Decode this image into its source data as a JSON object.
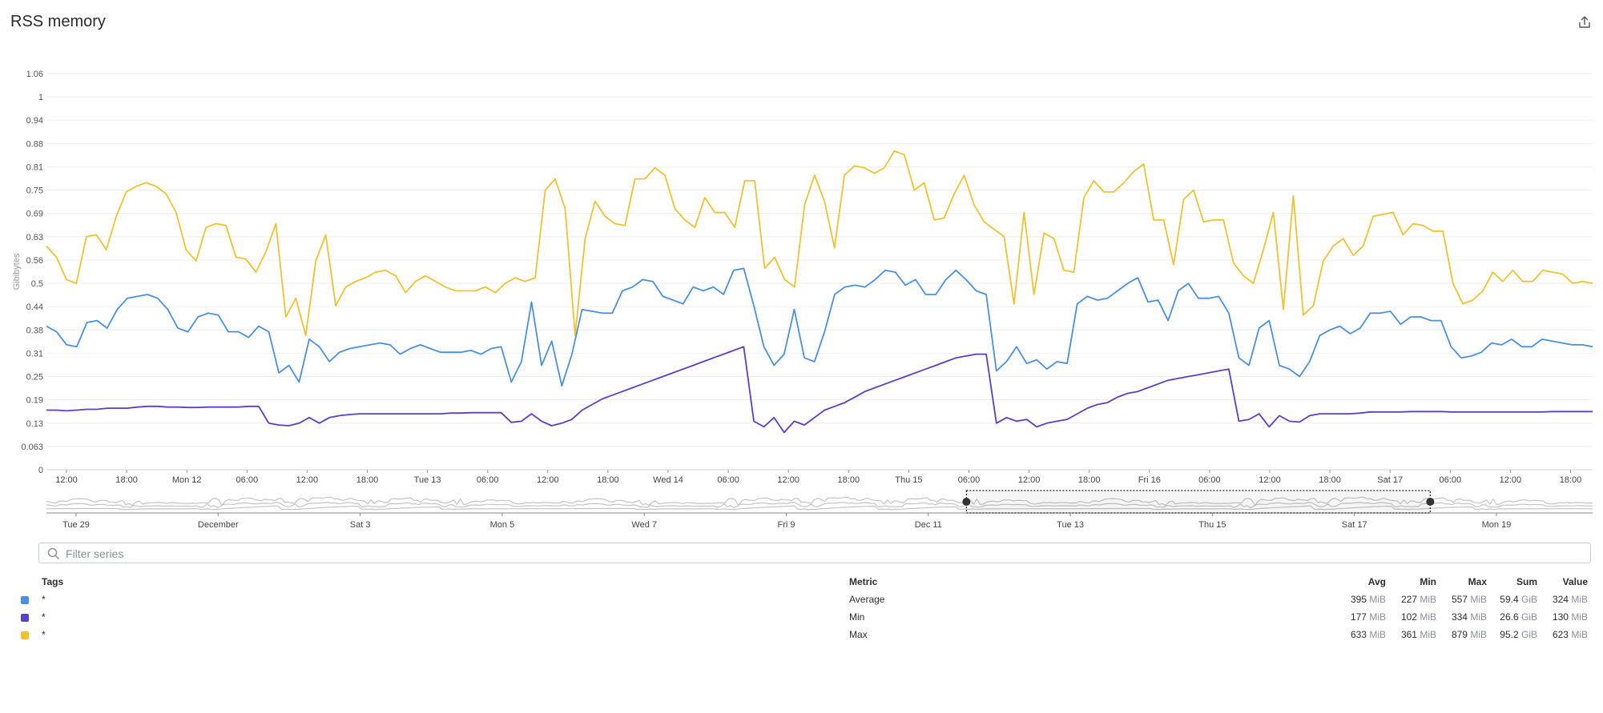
{
  "title": "RSS memory",
  "colors": {
    "avg": "#4a90e2",
    "min": "#5b3fc4",
    "max": "#f0c232"
  },
  "filter": {
    "placeholder": "Filter series"
  },
  "chart_data": {
    "type": "line",
    "ylabel": "Gibibytes",
    "yticks": [
      "0",
      "0.063",
      "0.13",
      "0.19",
      "0.25",
      "0.31",
      "0.38",
      "0.44",
      "0.5",
      "0.56",
      "0.63",
      "0.69",
      "0.75",
      "0.81",
      "0.88",
      "0.94",
      "1",
      "1.06"
    ],
    "xticks": [
      "12:00",
      "18:00",
      "Mon 12",
      "06:00",
      "12:00",
      "18:00",
      "Tue 13",
      "06:00",
      "12:00",
      "18:00",
      "Wed 14",
      "06:00",
      "12:00",
      "18:00",
      "Thu 15",
      "06:00",
      "12:00",
      "18:00",
      "Fri 16",
      "06:00",
      "12:00",
      "18:00",
      "Sat 17",
      "06:00",
      "12:00",
      "18:00"
    ],
    "series": [
      {
        "key": "avg",
        "color": "#4a90e2",
        "values": [
          0.385,
          0.37,
          0.335,
          0.33,
          0.395,
          0.4,
          0.38,
          0.43,
          0.46,
          0.465,
          0.47,
          0.46,
          0.43,
          0.38,
          0.37,
          0.41,
          0.42,
          0.415,
          0.37,
          0.37,
          0.355,
          0.385,
          0.37,
          0.26,
          0.28,
          0.235,
          0.35,
          0.33,
          0.29,
          0.315,
          0.325,
          0.33,
          0.335,
          0.34,
          0.335,
          0.31,
          0.325,
          0.335,
          0.325,
          0.315,
          0.315,
          0.315,
          0.32,
          0.31,
          0.325,
          0.33,
          0.235,
          0.29,
          0.45,
          0.28,
          0.345,
          0.225,
          0.31,
          0.43,
          0.425,
          0.42,
          0.42,
          0.48,
          0.49,
          0.51,
          0.505,
          0.465,
          0.455,
          0.445,
          0.49,
          0.48,
          0.49,
          0.47,
          0.535,
          0.54,
          0.44,
          0.33,
          0.28,
          0.31,
          0.43,
          0.3,
          0.29,
          0.37,
          0.47,
          0.49,
          0.495,
          0.49,
          0.51,
          0.535,
          0.53,
          0.495,
          0.51,
          0.47,
          0.47,
          0.51,
          0.535,
          0.51,
          0.48,
          0.47,
          0.265,
          0.29,
          0.33,
          0.285,
          0.295,
          0.27,
          0.29,
          0.285,
          0.445,
          0.465,
          0.455,
          0.46,
          0.48,
          0.5,
          0.515,
          0.45,
          0.455,
          0.4,
          0.48,
          0.5,
          0.46,
          0.46,
          0.465,
          0.42,
          0.3,
          0.28,
          0.38,
          0.4,
          0.28,
          0.27,
          0.25,
          0.29,
          0.36,
          0.375,
          0.385,
          0.365,
          0.38,
          0.42,
          0.42,
          0.425,
          0.39,
          0.41,
          0.41,
          0.4,
          0.4,
          0.33,
          0.3,
          0.305,
          0.315,
          0.34,
          0.335,
          0.35,
          0.33,
          0.33,
          0.35,
          0.345,
          0.34,
          0.335,
          0.335,
          0.33
        ]
      },
      {
        "key": "min",
        "color": "#5b3fc4",
        "values": [
          0.16,
          0.16,
          0.158,
          0.16,
          0.162,
          0.162,
          0.165,
          0.165,
          0.165,
          0.168,
          0.17,
          0.17,
          0.168,
          0.168,
          0.167,
          0.167,
          0.168,
          0.168,
          0.168,
          0.168,
          0.17,
          0.17,
          0.125,
          0.12,
          0.118,
          0.125,
          0.14,
          0.125,
          0.14,
          0.145,
          0.148,
          0.15,
          0.15,
          0.15,
          0.15,
          0.15,
          0.15,
          0.15,
          0.15,
          0.15,
          0.152,
          0.152,
          0.153,
          0.153,
          0.153,
          0.153,
          0.127,
          0.13,
          0.15,
          0.13,
          0.118,
          0.125,
          0.135,
          0.16,
          0.175,
          0.19,
          0.2,
          0.21,
          0.22,
          0.23,
          0.24,
          0.25,
          0.26,
          0.27,
          0.28,
          0.29,
          0.3,
          0.31,
          0.32,
          0.33,
          0.13,
          0.115,
          0.14,
          0.1,
          0.13,
          0.12,
          0.14,
          0.16,
          0.17,
          0.18,
          0.195,
          0.21,
          0.22,
          0.23,
          0.24,
          0.25,
          0.26,
          0.27,
          0.28,
          0.29,
          0.3,
          0.305,
          0.31,
          0.31,
          0.125,
          0.14,
          0.13,
          0.135,
          0.115,
          0.125,
          0.13,
          0.135,
          0.15,
          0.165,
          0.175,
          0.18,
          0.195,
          0.205,
          0.21,
          0.22,
          0.23,
          0.24,
          0.245,
          0.25,
          0.255,
          0.26,
          0.265,
          0.27,
          0.13,
          0.135,
          0.15,
          0.115,
          0.145,
          0.13,
          0.128,
          0.145,
          0.15,
          0.15,
          0.15,
          0.15,
          0.152,
          0.155,
          0.155,
          0.155,
          0.155,
          0.156,
          0.156,
          0.156,
          0.156,
          0.155,
          0.155,
          0.155,
          0.155,
          0.155,
          0.155,
          0.155,
          0.155,
          0.155,
          0.155,
          0.156,
          0.156,
          0.156,
          0.156,
          0.156
        ]
      },
      {
        "key": "max",
        "color": "#f0c232",
        "values": [
          0.6,
          0.57,
          0.51,
          0.5,
          0.625,
          0.63,
          0.59,
          0.68,
          0.745,
          0.76,
          0.77,
          0.76,
          0.74,
          0.69,
          0.59,
          0.56,
          0.65,
          0.66,
          0.655,
          0.57,
          0.565,
          0.53,
          0.585,
          0.66,
          0.41,
          0.46,
          0.36,
          0.56,
          0.63,
          0.44,
          0.49,
          0.505,
          0.515,
          0.53,
          0.535,
          0.52,
          0.475,
          0.505,
          0.52,
          0.505,
          0.49,
          0.48,
          0.48,
          0.48,
          0.49,
          0.475,
          0.5,
          0.515,
          0.505,
          0.515,
          0.75,
          0.78,
          0.7,
          0.36,
          0.62,
          0.72,
          0.68,
          0.66,
          0.655,
          0.78,
          0.78,
          0.81,
          0.79,
          0.7,
          0.67,
          0.65,
          0.73,
          0.69,
          0.69,
          0.65,
          0.775,
          0.775,
          0.54,
          0.57,
          0.51,
          0.49,
          0.71,
          0.79,
          0.72,
          0.595,
          0.79,
          0.815,
          0.81,
          0.795,
          0.81,
          0.855,
          0.845,
          0.75,
          0.77,
          0.67,
          0.675,
          0.74,
          0.79,
          0.71,
          0.665,
          0.645,
          0.625,
          0.445,
          0.69,
          0.47,
          0.635,
          0.62,
          0.535,
          0.53,
          0.73,
          0.775,
          0.745,
          0.745,
          0.77,
          0.8,
          0.82,
          0.67,
          0.67,
          0.55,
          0.725,
          0.75,
          0.665,
          0.67,
          0.67,
          0.555,
          0.52,
          0.5,
          0.59,
          0.69,
          0.43,
          0.735,
          0.415,
          0.44,
          0.56,
          0.6,
          0.62,
          0.575,
          0.6,
          0.68,
          0.685,
          0.69,
          0.63,
          0.66,
          0.655,
          0.64,
          0.64,
          0.5,
          0.445,
          0.455,
          0.48,
          0.53,
          0.505,
          0.535,
          0.505,
          0.505,
          0.535,
          0.53,
          0.525,
          0.5,
          0.505,
          0.5
        ]
      }
    ],
    "navigator": {
      "xticks": [
        "Tue 29",
        "December",
        "Sat 3",
        "Mon 5",
        "Wed 7",
        "Fri 9",
        "Dec 11",
        "Tue 13",
        "Thu 15",
        "Sat 17",
        "Mon 19"
      ],
      "selection_start": 0.595,
      "selection_end": 0.895
    }
  },
  "legend": {
    "headers": {
      "tags": "Tags",
      "metric": "Metric",
      "avg": "Avg",
      "min": "Min",
      "max": "Max",
      "sum": "Sum",
      "value": "Value"
    },
    "rows": [
      {
        "color": "#4a90e2",
        "tag": "*",
        "metric": "Average",
        "avg": "395",
        "avg_unit": "MiB",
        "min": "227",
        "min_unit": "MiB",
        "max": "557",
        "max_unit": "MiB",
        "sum": "59.4",
        "sum_unit": "GiB",
        "value": "324",
        "value_unit": "MiB"
      },
      {
        "color": "#5b3fc4",
        "tag": "*",
        "metric": "Min",
        "avg": "177",
        "avg_unit": "MiB",
        "min": "102",
        "min_unit": "MiB",
        "max": "334",
        "max_unit": "MiB",
        "sum": "26.6",
        "sum_unit": "GiB",
        "value": "130",
        "value_unit": "MiB"
      },
      {
        "color": "#f0c232",
        "tag": "*",
        "metric": "Max",
        "avg": "633",
        "avg_unit": "MiB",
        "min": "361",
        "min_unit": "MiB",
        "max": "879",
        "max_unit": "MiB",
        "sum": "95.2",
        "sum_unit": "GiB",
        "value": "623",
        "value_unit": "MiB"
      }
    ]
  }
}
